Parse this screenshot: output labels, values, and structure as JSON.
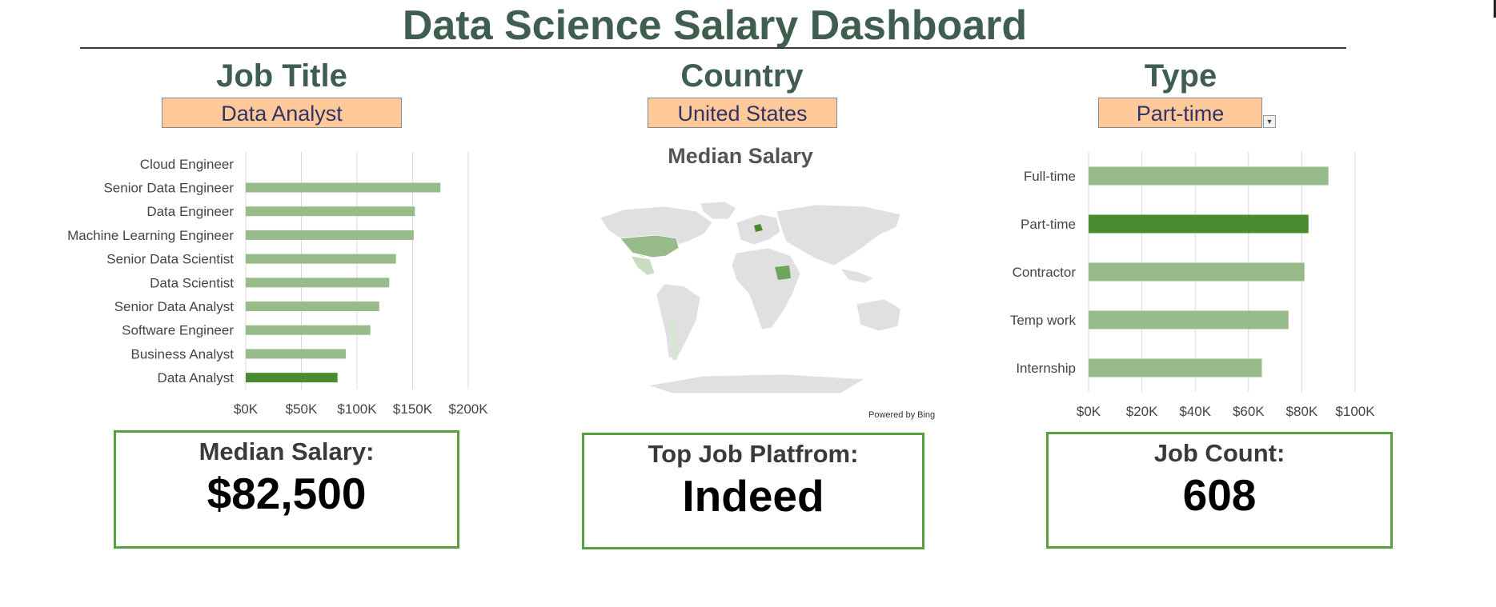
{
  "header": {
    "title": "Data Science Salary Dashboard"
  },
  "filters": {
    "job_title": {
      "label": "Job Title",
      "value": "Data Analyst"
    },
    "country": {
      "label": "Country",
      "value": "United States"
    },
    "type": {
      "label": "Type",
      "value": "Part-time"
    }
  },
  "map": {
    "title": "Median Salary",
    "attribution": "Powered by Bing"
  },
  "colors": {
    "highlight": "#4a8b2f",
    "bar": "#97bb89",
    "grid": "#d9d9d9",
    "map_land": "#e0e0e0"
  },
  "chart_data": [
    {
      "type": "bar",
      "orientation": "horizontal",
      "categories": [
        "Cloud Engineer",
        "Senior Data Engineer",
        "Data Engineer",
        "Machine Learning Engineer",
        "Senior Data Scientist",
        "Data Scientist",
        "Senior Data Analyst",
        "Software Engineer",
        "Business Analyst",
        "Data Analyst"
      ],
      "values": [
        null,
        175000,
        152000,
        151000,
        135000,
        129000,
        120000,
        112000,
        90000,
        82500
      ],
      "highlight": "Data Analyst",
      "xlim": [
        0,
        200000
      ],
      "xticks": [
        0,
        50000,
        100000,
        150000,
        200000
      ],
      "xtick_labels": [
        "$0K",
        "$50K",
        "$100K",
        "$150K",
        "$200K"
      ],
      "grid": true
    },
    {
      "type": "bar",
      "orientation": "horizontal",
      "categories": [
        "Full-time",
        "Part-time",
        "Contractor",
        "Temp work",
        "Internship"
      ],
      "values": [
        90000,
        82500,
        81000,
        75000,
        65000
      ],
      "highlight": "Part-time",
      "xlim": [
        0,
        100000
      ],
      "xticks": [
        0,
        20000,
        40000,
        60000,
        80000,
        100000
      ],
      "xtick_labels": [
        "$0K",
        "$20K",
        "$40K",
        "$60K",
        "$80K",
        "$100K"
      ],
      "grid": true
    }
  ],
  "kpis": {
    "salary": {
      "label": "Median Salary:",
      "value": "$82,500"
    },
    "platform": {
      "label": "Top Job Platfrom:",
      "value": "Indeed"
    },
    "count": {
      "label": "Job Count:",
      "value": "608"
    }
  }
}
